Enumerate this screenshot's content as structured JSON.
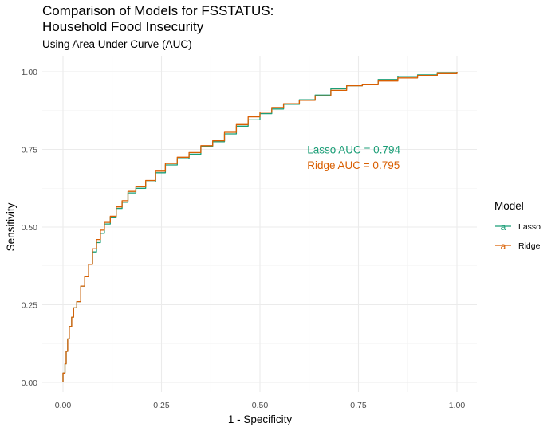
{
  "chart_data": {
    "type": "line",
    "title": "Comparison of Models for FSSTATUS:\nHousehold Food Insecurity",
    "subtitle": "Using Area Under Curve (AUC)",
    "xlabel": "1 - Specificity",
    "ylabel": "Sensitivity",
    "xlim": [
      0,
      1
    ],
    "ylim": [
      0,
      1
    ],
    "x_ticks": [
      "0.00",
      "0.25",
      "0.50",
      "0.75",
      "1.00"
    ],
    "y_ticks": [
      "0.00",
      "0.25",
      "0.50",
      "0.75",
      "1.00"
    ],
    "grid": true,
    "legend": {
      "title": "Model",
      "position": "right",
      "entries": [
        {
          "name": "Lasso",
          "color": "#1b9e77"
        },
        {
          "name": "Ridge",
          "color": "#d95f02"
        }
      ]
    },
    "annotations": [
      {
        "text": "Lasso AUC = 0.794",
        "color": "#1b9e77",
        "x": 0.62,
        "y": 0.75
      },
      {
        "text": "Ridge AUC = 0.795",
        "color": "#d95f02",
        "x": 0.62,
        "y": 0.7
      }
    ],
    "series": [
      {
        "name": "Lasso",
        "color": "#1b9e77",
        "points": [
          [
            0,
            0
          ],
          [
            0,
            0.03
          ],
          [
            0.005,
            0.06
          ],
          [
            0.008,
            0.1
          ],
          [
            0.012,
            0.14
          ],
          [
            0.016,
            0.18
          ],
          [
            0.022,
            0.21
          ],
          [
            0.027,
            0.24
          ],
          [
            0.035,
            0.26
          ],
          [
            0.045,
            0.31
          ],
          [
            0.055,
            0.34
          ],
          [
            0.065,
            0.38
          ],
          [
            0.075,
            0.42
          ],
          [
            0.085,
            0.45
          ],
          [
            0.095,
            0.48
          ],
          [
            0.105,
            0.51
          ],
          [
            0.12,
            0.53
          ],
          [
            0.135,
            0.56
          ],
          [
            0.15,
            0.58
          ],
          [
            0.165,
            0.61
          ],
          [
            0.185,
            0.625
          ],
          [
            0.21,
            0.645
          ],
          [
            0.235,
            0.675
          ],
          [
            0.26,
            0.7
          ],
          [
            0.29,
            0.72
          ],
          [
            0.32,
            0.735
          ],
          [
            0.35,
            0.76
          ],
          [
            0.38,
            0.775
          ],
          [
            0.41,
            0.8
          ],
          [
            0.44,
            0.825
          ],
          [
            0.47,
            0.845
          ],
          [
            0.5,
            0.865
          ],
          [
            0.53,
            0.88
          ],
          [
            0.56,
            0.895
          ],
          [
            0.6,
            0.91
          ],
          [
            0.64,
            0.925
          ],
          [
            0.68,
            0.945
          ],
          [
            0.72,
            0.955
          ],
          [
            0.76,
            0.96
          ],
          [
            0.8,
            0.975
          ],
          [
            0.85,
            0.985
          ],
          [
            0.9,
            0.99
          ],
          [
            0.95,
            0.995
          ],
          [
            1.0,
            1.0
          ]
        ]
      },
      {
        "name": "Ridge",
        "color": "#d95f02",
        "points": [
          [
            0,
            0
          ],
          [
            0,
            0.03
          ],
          [
            0.005,
            0.06
          ],
          [
            0.008,
            0.1
          ],
          [
            0.012,
            0.14
          ],
          [
            0.016,
            0.18
          ],
          [
            0.022,
            0.21
          ],
          [
            0.027,
            0.24
          ],
          [
            0.035,
            0.26
          ],
          [
            0.045,
            0.31
          ],
          [
            0.055,
            0.34
          ],
          [
            0.065,
            0.38
          ],
          [
            0.075,
            0.43
          ],
          [
            0.085,
            0.46
          ],
          [
            0.095,
            0.49
          ],
          [
            0.105,
            0.515
          ],
          [
            0.12,
            0.535
          ],
          [
            0.135,
            0.565
          ],
          [
            0.15,
            0.585
          ],
          [
            0.165,
            0.615
          ],
          [
            0.185,
            0.63
          ],
          [
            0.21,
            0.65
          ],
          [
            0.235,
            0.68
          ],
          [
            0.26,
            0.705
          ],
          [
            0.29,
            0.725
          ],
          [
            0.32,
            0.74
          ],
          [
            0.35,
            0.762
          ],
          [
            0.38,
            0.778
          ],
          [
            0.41,
            0.805
          ],
          [
            0.44,
            0.83
          ],
          [
            0.47,
            0.855
          ],
          [
            0.5,
            0.87
          ],
          [
            0.53,
            0.885
          ],
          [
            0.56,
            0.897
          ],
          [
            0.6,
            0.908
          ],
          [
            0.64,
            0.922
          ],
          [
            0.68,
            0.94
          ],
          [
            0.72,
            0.955
          ],
          [
            0.76,
            0.958
          ],
          [
            0.8,
            0.97
          ],
          [
            0.85,
            0.98
          ],
          [
            0.9,
            0.988
          ],
          [
            0.95,
            0.994
          ],
          [
            1.0,
            1.0
          ]
        ]
      }
    ]
  }
}
